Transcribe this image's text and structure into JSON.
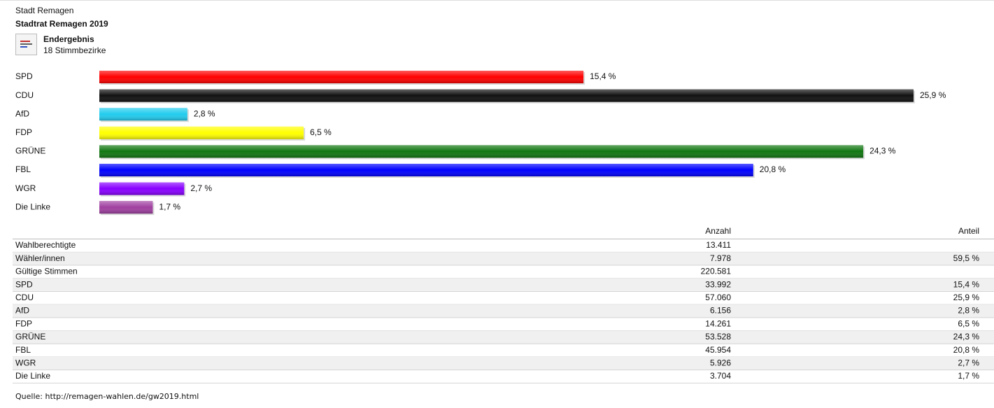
{
  "header": {
    "place": "Stadt Remagen",
    "title": "Stadtrat Remagen 2019",
    "status": "Endergebnis",
    "districts": "18 Stimmbezirke"
  },
  "chart_data": {
    "type": "bar",
    "orientation": "horizontal",
    "categories": [
      "SPD",
      "CDU",
      "AfD",
      "FDP",
      "GRÜNE",
      "FBL",
      "WGR",
      "Die Linke"
    ],
    "values": [
      15.4,
      25.9,
      2.8,
      6.5,
      24.3,
      20.8,
      2.7,
      1.7
    ],
    "value_labels": [
      "15,4 %",
      "25,9 %",
      "2,8 %",
      "6,5 %",
      "24,3 %",
      "20,8 %",
      "2,7 %",
      "1,7 %"
    ],
    "colors": [
      "#ff0000",
      "#111111",
      "#22ccee",
      "#ffff00",
      "#117711",
      "#0000ff",
      "#8800ff",
      "#a040a0"
    ]
  },
  "table": {
    "columns": [
      "Anzahl",
      "Anteil"
    ],
    "rows": [
      {
        "label": "Wahlberechtigte",
        "count": "13.411"
      },
      {
        "label": "Wähler/innen",
        "count": "7.978",
        "share": "59,5 %"
      },
      {
        "label": "Gültige Stimmen",
        "count": "220.581"
      },
      {
        "label": "SPD",
        "count": "33.992",
        "share": "15,4 %"
      },
      {
        "label": "CDU",
        "count": "57.060",
        "share": "25,9 %"
      },
      {
        "label": "AfD",
        "count": "6.156",
        "share": "2,8 %"
      },
      {
        "label": "FDP",
        "count": "14.261",
        "share": "6,5 %"
      },
      {
        "label": "GRÜNE",
        "count": "53.528",
        "share": "24,3 %"
      },
      {
        "label": "FBL",
        "count": "45.954",
        "share": "20,8 %"
      },
      {
        "label": "WGR",
        "count": "5.926",
        "share": "2,7 %"
      },
      {
        "label": "Die Linke",
        "count": "3.704",
        "share": "1,7 %"
      }
    ]
  },
  "source": "Quelle: http://remagen-wahlen.de/gw2019.html"
}
